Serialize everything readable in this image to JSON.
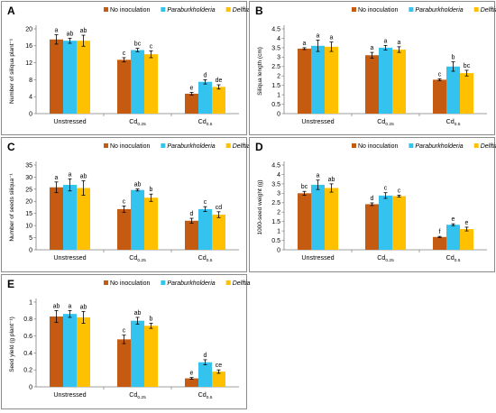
{
  "legend": [
    {
      "name": "No inoculation",
      "italic": false,
      "color": "#c55a11"
    },
    {
      "name": "Paraburkholderia",
      "italic": true,
      "color": "#33c3ee"
    },
    {
      "name": "Delftia",
      "italic": true,
      "color": "#ffc000"
    }
  ],
  "categories": [
    {
      "main": "Unstressed",
      "sub": ""
    },
    {
      "main": "Cd",
      "sub": "0.25"
    },
    {
      "main": "Cd",
      "sub": "0.5"
    }
  ],
  "chart_data": [
    {
      "panel": "A",
      "type": "bar",
      "ylabel": "Number of siliqua plant⁻¹",
      "ylim": [
        0,
        20
      ],
      "yticks": [
        0,
        4,
        8,
        12,
        16,
        20
      ],
      "series": [
        {
          "name": "No inoculation",
          "values": [
            17.5,
            12.7,
            4.7
          ],
          "errors": [
            1.1,
            0.5,
            0.3
          ],
          "letters": [
            "a",
            "c",
            "e"
          ]
        },
        {
          "name": "Paraburkholderia",
          "values": [
            17.2,
            15.0,
            7.5
          ],
          "errors": [
            0.6,
            0.4,
            0.5
          ],
          "letters": [
            "ab",
            "bc",
            "d"
          ]
        },
        {
          "name": "Delftia",
          "values": [
            17.2,
            14.0,
            6.3
          ],
          "errors": [
            1.3,
            0.8,
            0.5
          ],
          "letters": [
            "ab",
            "c",
            "de"
          ]
        }
      ]
    },
    {
      "panel": "B",
      "type": "bar",
      "ylabel": "Siliqua length (cm)",
      "ylim": [
        0,
        4.5
      ],
      "yticks": [
        0,
        0.5,
        1,
        1.5,
        2,
        2.5,
        3,
        3.5,
        4,
        4.5
      ],
      "series": [
        {
          "name": "No inoculation",
          "values": [
            3.45,
            3.1,
            1.8
          ],
          "errors": [
            0.05,
            0.15,
            0.05
          ],
          "letters": [
            "a",
            "a",
            "c"
          ]
        },
        {
          "name": "Paraburkholderia",
          "values": [
            3.6,
            3.5,
            2.5
          ],
          "errors": [
            0.3,
            0.12,
            0.25
          ],
          "letters": [
            "a",
            "a",
            "b"
          ]
        },
        {
          "name": "Delftia",
          "values": [
            3.55,
            3.4,
            2.15
          ],
          "errors": [
            0.25,
            0.15,
            0.15
          ],
          "letters": [
            "a",
            "a",
            "bc"
          ]
        }
      ]
    },
    {
      "panel": "C",
      "type": "bar",
      "ylabel": "Number of seeds siliqua⁻¹",
      "ylim": [
        0,
        35
      ],
      "yticks": [
        0,
        5,
        10,
        15,
        20,
        25,
        30,
        35
      ],
      "series": [
        {
          "name": "No inoculation",
          "values": [
            25.8,
            16.8,
            12.0
          ],
          "errors": [
            2.2,
            1.3,
            1.0
          ],
          "letters": [
            "a",
            "c",
            "d"
          ]
        },
        {
          "name": "Paraburkholderia",
          "values": [
            26.8,
            24.7,
            16.8
          ],
          "errors": [
            2.5,
            0.4,
            1.0
          ],
          "letters": [
            "a",
            "ab",
            "c"
          ]
        },
        {
          "name": "Delftia",
          "values": [
            25.5,
            21.5,
            14.5
          ],
          "errors": [
            3.0,
            1.5,
            1.2
          ],
          "letters": [
            "ab",
            "b",
            "cd"
          ]
        }
      ]
    },
    {
      "panel": "D",
      "type": "bar",
      "ylabel": "1000-seed weight (g)",
      "ylim": [
        0,
        4.5
      ],
      "yticks": [
        0,
        0.5,
        1,
        1.5,
        2,
        2.5,
        3,
        3.5,
        4,
        4.5
      ],
      "series": [
        {
          "name": "No inoculation",
          "values": [
            3.0,
            2.42,
            0.68
          ],
          "errors": [
            0.1,
            0.07,
            0.03
          ],
          "letters": [
            "bc",
            "d",
            "f"
          ]
        },
        {
          "name": "Paraburkholderia",
          "values": [
            3.45,
            2.88,
            1.33
          ],
          "errors": [
            0.25,
            0.15,
            0.05
          ],
          "letters": [
            "a",
            "c",
            "e"
          ]
        },
        {
          "name": "Delftia",
          "values": [
            3.28,
            2.85,
            1.1
          ],
          "errors": [
            0.22,
            0.05,
            0.1
          ],
          "letters": [
            "ab",
            "c",
            "e"
          ]
        }
      ]
    },
    {
      "panel": "E",
      "type": "bar",
      "ylabel": "Seed yield (g plant⁻¹)",
      "ylim": [
        0,
        1
      ],
      "yticks": [
        0,
        0.2,
        0.4,
        0.6,
        0.8,
        1
      ],
      "series": [
        {
          "name": "No inoculation",
          "values": [
            0.83,
            0.56,
            0.1
          ],
          "errors": [
            0.07,
            0.05,
            0.01
          ],
          "letters": [
            "ab",
            "c",
            "e"
          ]
        },
        {
          "name": "Paraburkholderia",
          "values": [
            0.86,
            0.78,
            0.29
          ],
          "errors": [
            0.04,
            0.04,
            0.03
          ],
          "letters": [
            "a",
            "ab",
            "d"
          ]
        },
        {
          "name": "Delftia",
          "values": [
            0.82,
            0.72,
            0.18
          ],
          "errors": [
            0.07,
            0.03,
            0.02
          ],
          "letters": [
            "ab",
            "b",
            "ce"
          ]
        }
      ]
    }
  ]
}
